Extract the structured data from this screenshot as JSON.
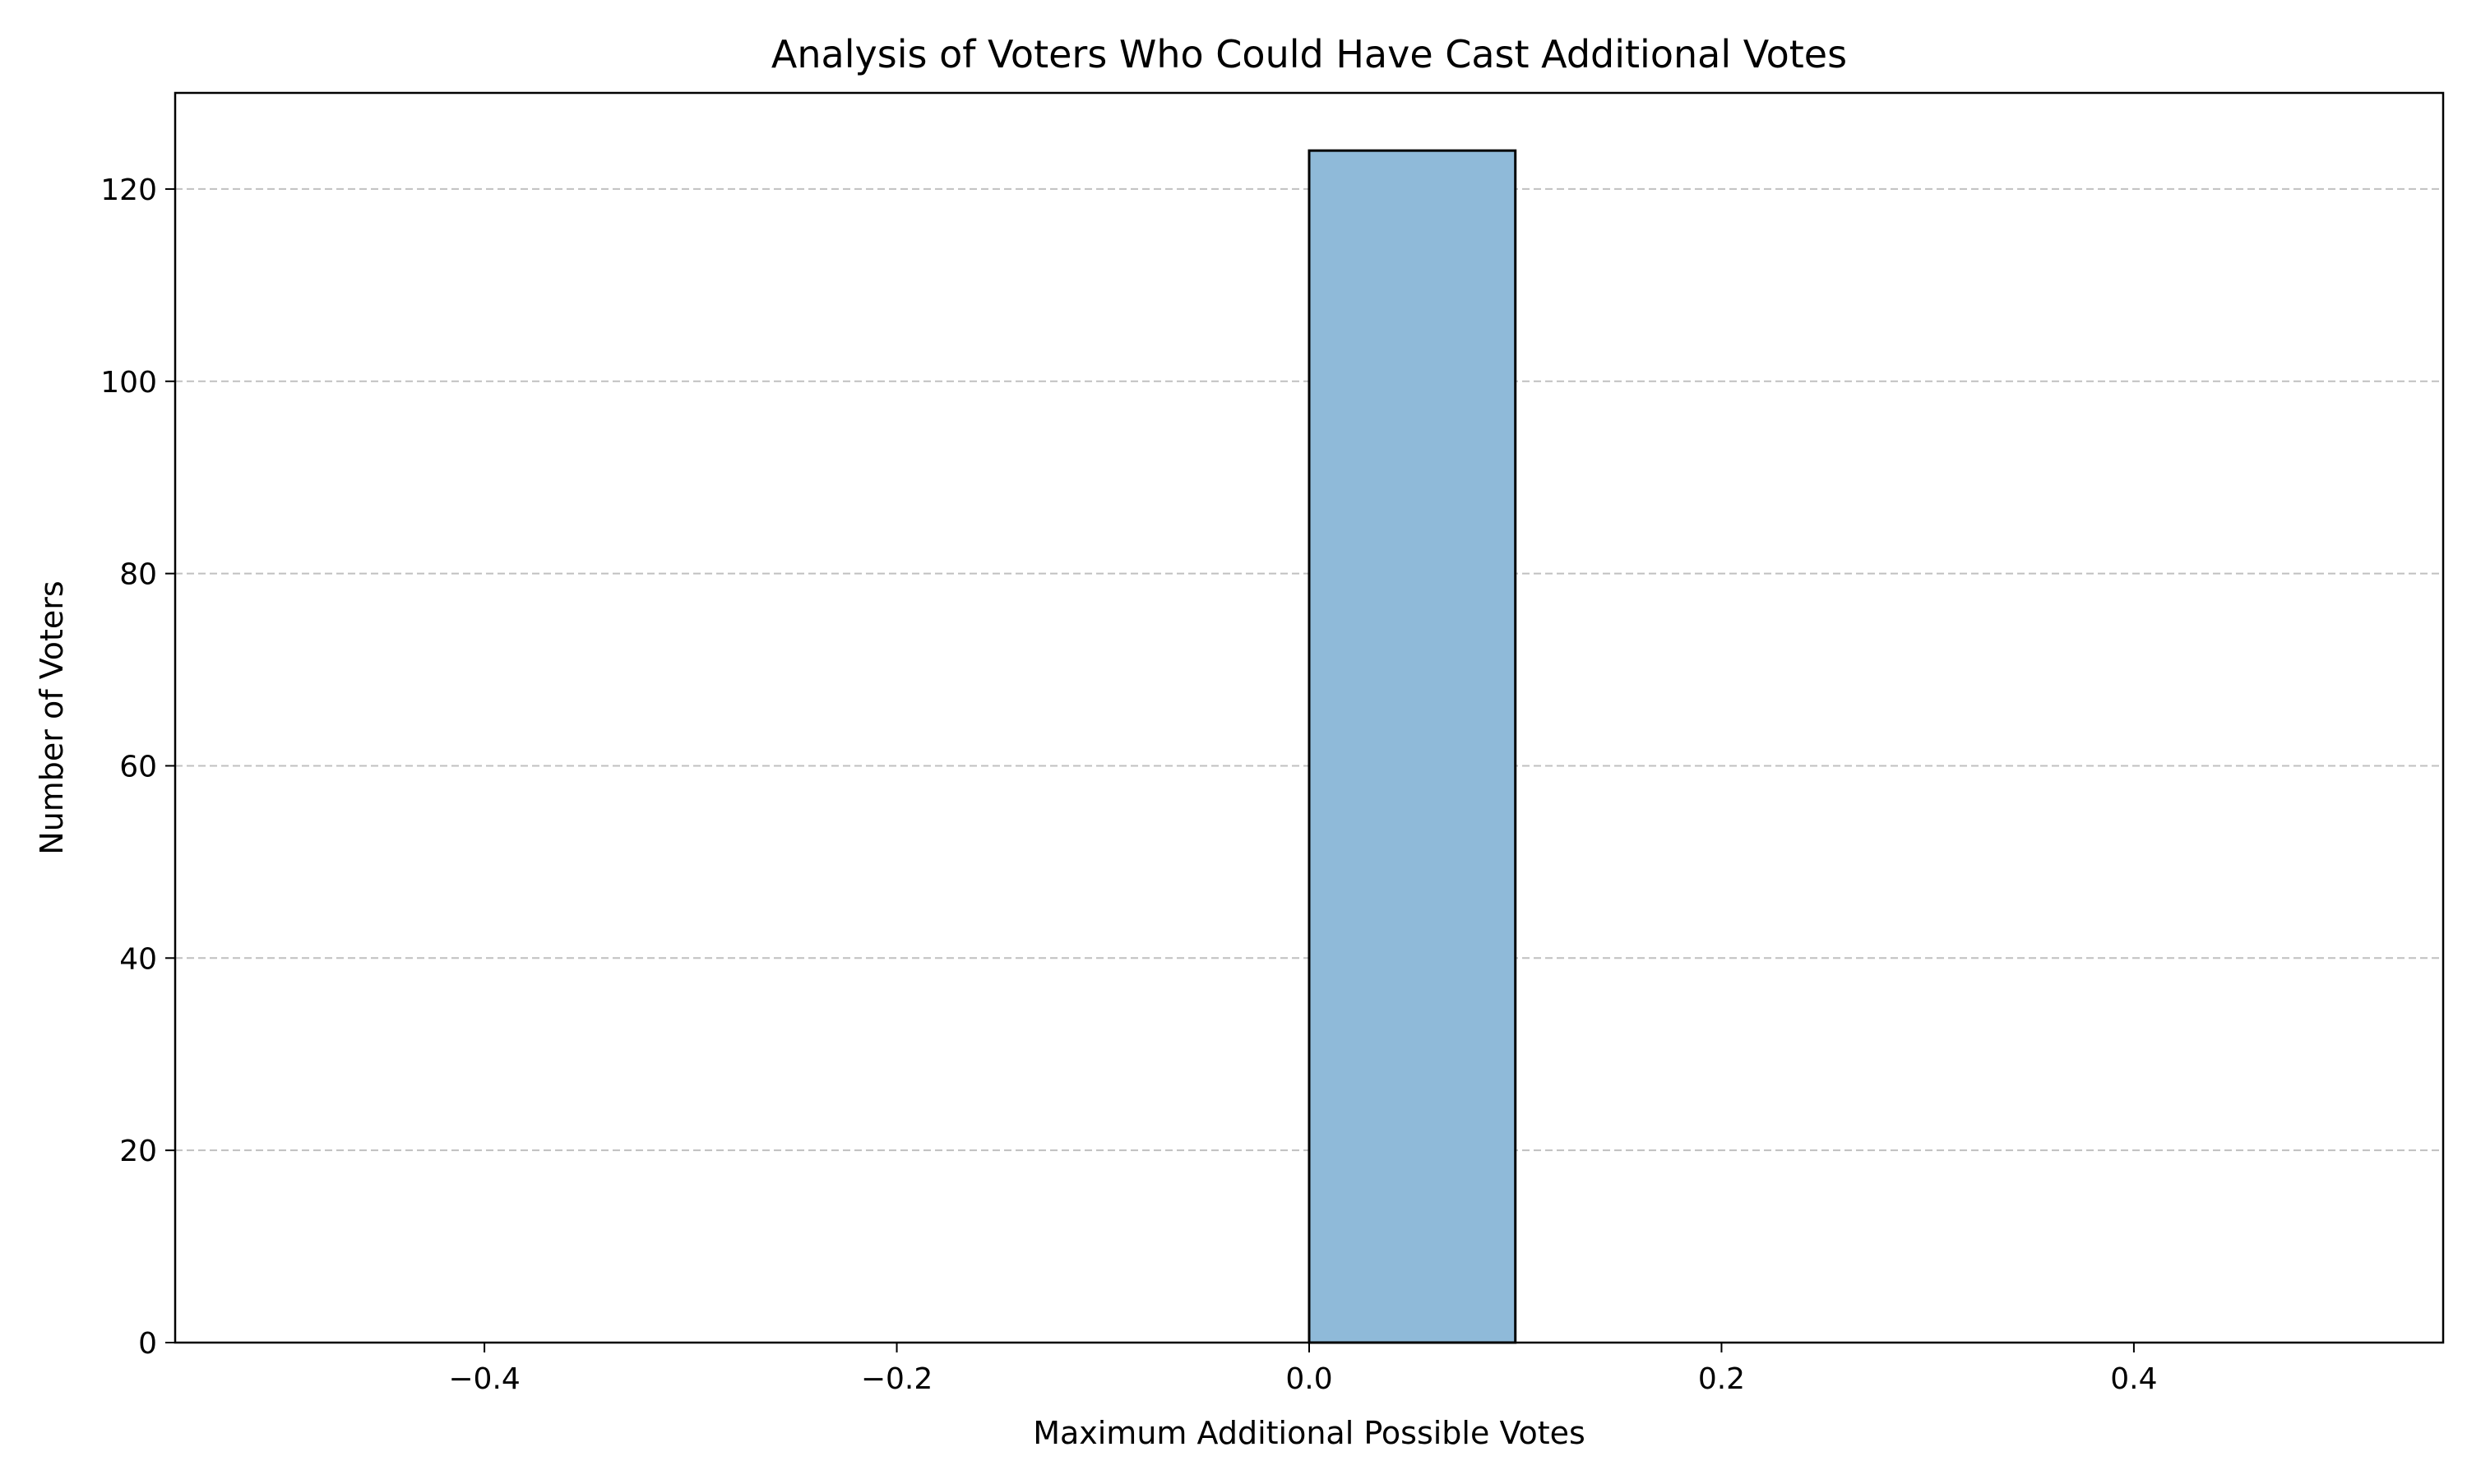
{
  "chart_data": {
    "type": "bar",
    "title": "Analysis of Voters Who Could Have Cast Additional Votes",
    "xlabel": "Maximum Additional Possible Votes",
    "ylabel": "Number of Voters",
    "xlim": [
      -0.55,
      0.55
    ],
    "ylim": [
      0,
      130
    ],
    "xticks": [
      -0.4,
      -0.2,
      0.0,
      0.2,
      0.4
    ],
    "xtick_labels": [
      "−0.4",
      "−0.2",
      "0.0",
      "0.2",
      "0.4"
    ],
    "yticks": [
      0,
      20,
      40,
      60,
      80,
      100,
      120
    ],
    "ytick_labels": [
      "0",
      "20",
      "40",
      "60",
      "80",
      "100",
      "120"
    ],
    "grid": "y-dashed",
    "legend": "none",
    "bin_edges": [
      -0.5,
      -0.4,
      -0.3,
      -0.2,
      -0.1,
      0.0,
      0.1,
      0.2,
      0.3,
      0.4,
      0.5
    ],
    "values": [
      0,
      0,
      0,
      0,
      0,
      124,
      0,
      0,
      0,
      0
    ],
    "bar_color": "#8fbad9",
    "edge_color": "#000000",
    "grid_color": "#c0c0c0"
  }
}
